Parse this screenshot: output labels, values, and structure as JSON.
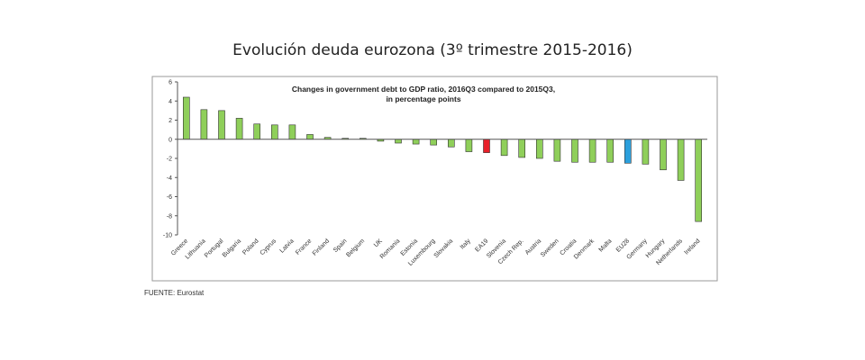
{
  "page": {
    "title": "Evolución deuda eurozona (3º trimestre 2015-2016)",
    "source": "FUENTE: Eurostat"
  },
  "chart_data": {
    "type": "bar",
    "title": "Changes in government debt to GDP ratio, 2016Q3 compared to 2015Q3,",
    "subtitle": "in percentage points",
    "categories": [
      "Greece",
      "Lithuania",
      "Portugal",
      "Bulgaria",
      "Poland",
      "Cyprus",
      "Latvia",
      "France",
      "Finland",
      "Spain",
      "Belgium",
      "UK",
      "Romania",
      "Estonia",
      "Luxembourg",
      "Slovakia",
      "Italy",
      "EA19",
      "Slovenia",
      "Czech Rep.",
      "Austria",
      "Sweden",
      "Croatia",
      "Denmark",
      "Malta",
      "EU28",
      "Germany",
      "Hungary",
      "Netherlands",
      "Ireland"
    ],
    "values": [
      4.4,
      3.1,
      3.0,
      2.2,
      1.6,
      1.5,
      1.5,
      0.5,
      0.2,
      0.1,
      0.1,
      -0.2,
      -0.4,
      -0.5,
      -0.6,
      -0.8,
      -1.3,
      -1.4,
      -1.7,
      -1.9,
      -2.0,
      -2.3,
      -2.4,
      -2.4,
      -2.4,
      -2.5,
      -2.6,
      -3.2,
      -4.3,
      -8.6
    ],
    "highlight": {
      "EA19": "#e8202a",
      "EU28": "#2b9fdc"
    },
    "bar_color": "#8fcf5a",
    "ylim": [
      -10,
      6
    ],
    "yticks": [
      6,
      4,
      2,
      0,
      -2,
      -4,
      -6,
      -8,
      -10
    ],
    "grid": false
  }
}
